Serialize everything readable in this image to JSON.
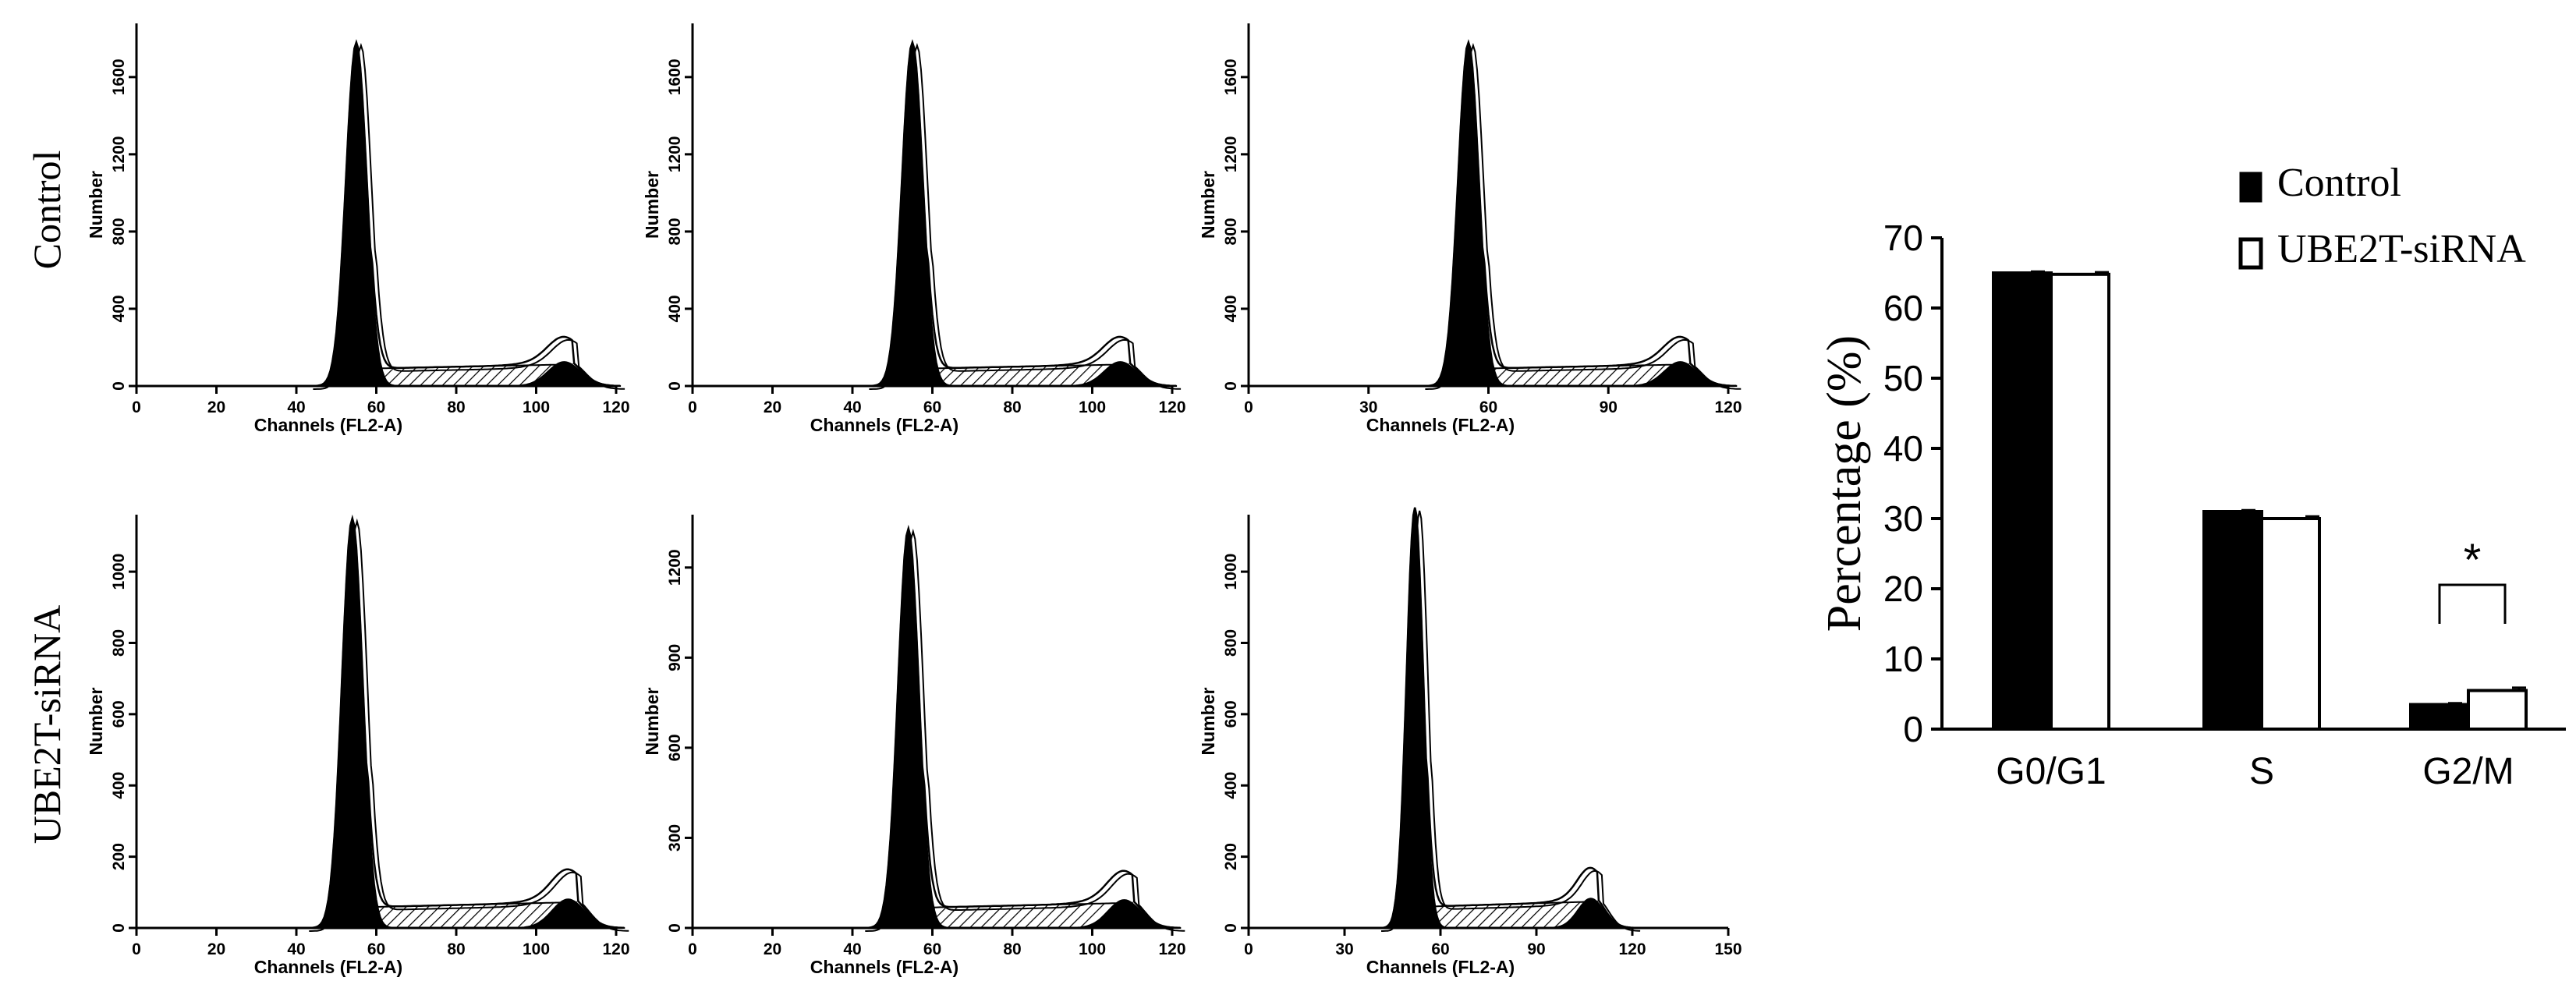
{
  "row_labels": [
    "Control",
    "UBE2T-siRNA"
  ],
  "histograms": {
    "xlabel": "Channels (FL2-A)",
    "ylabel": "Number",
    "panels": [
      {
        "row": 0,
        "col": 0,
        "xticks": [
          0,
          20,
          40,
          60,
          80,
          100,
          120
        ],
        "yticks": [
          0,
          400,
          800,
          1200,
          1600
        ],
        "g1_peak": 55,
        "g2_peak": 107,
        "peak_height": 1780,
        "markers": [
          53,
          106
        ]
      },
      {
        "row": 0,
        "col": 1,
        "xticks": [
          0,
          20,
          40,
          60,
          80,
          100,
          120
        ],
        "yticks": [
          0,
          400,
          800,
          1200,
          1600
        ],
        "g1_peak": 55,
        "g2_peak": 107,
        "peak_height": 1780,
        "markers": [
          55,
          105
        ]
      },
      {
        "row": 0,
        "col": 2,
        "xticks": [
          0,
          30,
          60,
          90,
          120
        ],
        "yticks": [
          0,
          400,
          800,
          1200,
          1600
        ],
        "g1_peak": 55,
        "g2_peak": 108,
        "peak_height": 1780,
        "markers": [
          53,
          107
        ]
      },
      {
        "row": 1,
        "col": 0,
        "xticks": [
          0,
          20,
          40,
          60,
          80,
          100,
          120
        ],
        "yticks": [
          0,
          200,
          400,
          600,
          800,
          1000
        ],
        "g1_peak": 54,
        "g2_peak": 108,
        "peak_height": 1150,
        "markers": [
          55
        ]
      },
      {
        "row": 1,
        "col": 1,
        "xticks": [
          0,
          20,
          40,
          60,
          80,
          100,
          120
        ],
        "yticks": [
          0,
          300,
          600,
          900,
          1200
        ],
        "g1_peak": 54,
        "g2_peak": 108,
        "peak_height": 1330,
        "markers": [
          54
        ]
      },
      {
        "row": 1,
        "col": 2,
        "xticks": [
          0,
          30,
          60,
          90,
          120,
          150
        ],
        "yticks": [
          0,
          200,
          400,
          600,
          800,
          1000
        ],
        "g1_peak": 52,
        "g2_peak": 107,
        "peak_height": 1180,
        "markers": [
          54
        ]
      }
    ]
  },
  "chart_data": {
    "type": "bar",
    "categories": [
      "G0/G1",
      "S",
      "G2/M"
    ],
    "series": [
      {
        "name": "Control",
        "values": [
          65.0,
          31.0,
          3.5
        ],
        "errors": [
          0.2,
          0.2,
          0.2
        ],
        "color": "#000000"
      },
      {
        "name": "UBE2T-siRNA",
        "values": [
          64.8,
          30.0,
          5.5
        ],
        "errors": [
          0.3,
          0.3,
          0.4
        ],
        "color": "#ffffff"
      }
    ],
    "ylabel": "Percentage (%)",
    "xlabel": "",
    "ylim": [
      0,
      70
    ],
    "yticks": [
      0,
      10,
      20,
      30,
      40,
      50,
      60,
      70
    ],
    "significance": {
      "category": "G2/M",
      "label": "*"
    },
    "legend_position": "top-right",
    "grid": false
  }
}
